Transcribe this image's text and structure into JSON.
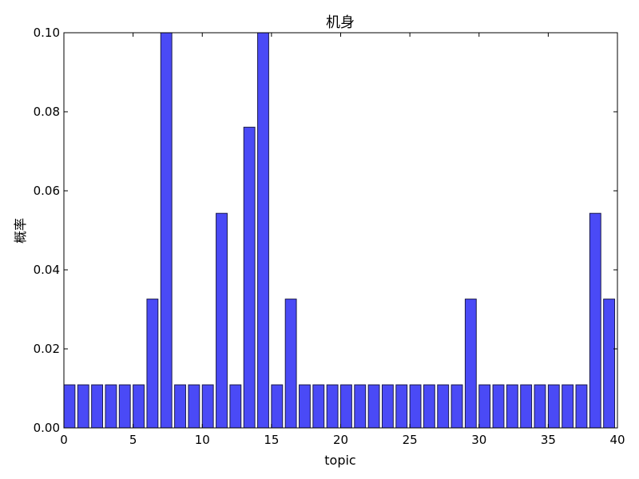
{
  "chart_data": {
    "type": "bar",
    "title": "机身",
    "xlabel": "topic",
    "ylabel": "概率",
    "xlim": [
      0,
      40
    ],
    "ylim": [
      0,
      0.1
    ],
    "xticks": [
      0,
      5,
      10,
      15,
      20,
      25,
      30,
      35,
      40
    ],
    "xtick_labels": [
      "0",
      "5",
      "10",
      "15",
      "20",
      "25",
      "30",
      "35",
      "40"
    ],
    "yticks": [
      0,
      0.02,
      0.04,
      0.06,
      0.08,
      0.1
    ],
    "ytick_labels": [
      "0.00",
      "0.02",
      "0.04",
      "0.06",
      "0.08",
      "0.10"
    ],
    "grid": false,
    "bar_color": "#4a4af6",
    "x": [
      0,
      1,
      2,
      3,
      4,
      5,
      6,
      7,
      8,
      9,
      10,
      11,
      12,
      13,
      14,
      15,
      16,
      17,
      18,
      19,
      20,
      21,
      22,
      23,
      24,
      25,
      26,
      27,
      28,
      29,
      30,
      31,
      32,
      33,
      34,
      35,
      36,
      37,
      38,
      39
    ],
    "values": [
      0.0109,
      0.0109,
      0.0109,
      0.0109,
      0.0109,
      0.0109,
      0.0326,
      0.1,
      0.0109,
      0.0109,
      0.0109,
      0.0543,
      0.0109,
      0.0761,
      0.1,
      0.0109,
      0.0326,
      0.0109,
      0.0109,
      0.0109,
      0.0109,
      0.0109,
      0.0109,
      0.0109,
      0.0109,
      0.0109,
      0.0109,
      0.0109,
      0.0109,
      0.0326,
      0.0109,
      0.0109,
      0.0109,
      0.0109,
      0.0109,
      0.0109,
      0.0109,
      0.0109,
      0.0543,
      0.0326
    ]
  }
}
